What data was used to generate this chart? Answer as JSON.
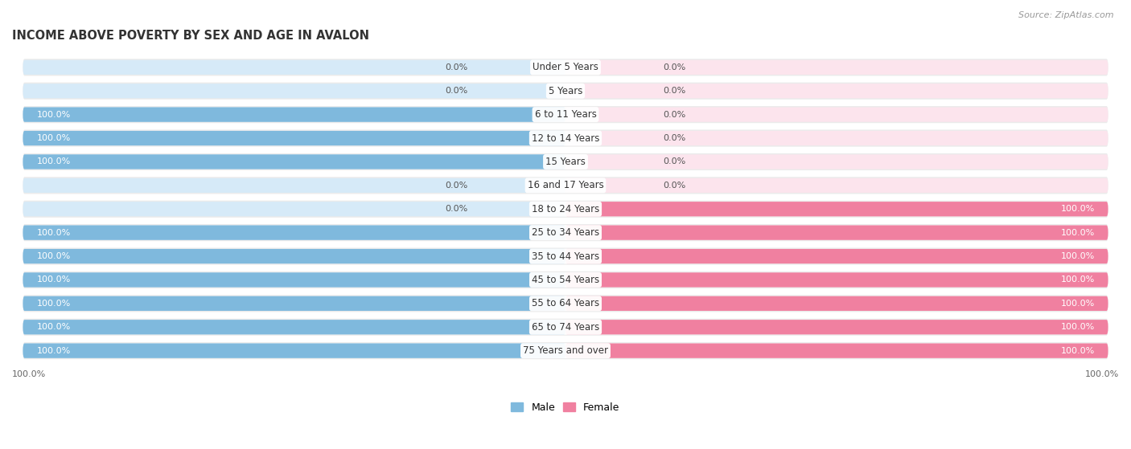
{
  "title": "INCOME ABOVE POVERTY BY SEX AND AGE IN AVALON",
  "source": "Source: ZipAtlas.com",
  "categories": [
    "Under 5 Years",
    "5 Years",
    "6 to 11 Years",
    "12 to 14 Years",
    "15 Years",
    "16 and 17 Years",
    "18 to 24 Years",
    "25 to 34 Years",
    "35 to 44 Years",
    "45 to 54 Years",
    "55 to 64 Years",
    "65 to 74 Years",
    "75 Years and over"
  ],
  "male": [
    0.0,
    0.0,
    100.0,
    100.0,
    100.0,
    0.0,
    0.0,
    100.0,
    100.0,
    100.0,
    100.0,
    100.0,
    100.0
  ],
  "female": [
    0.0,
    0.0,
    0.0,
    0.0,
    0.0,
    0.0,
    100.0,
    100.0,
    100.0,
    100.0,
    100.0,
    100.0,
    100.0
  ],
  "male_color": "#7fb9dd",
  "female_color": "#f080a0",
  "bar_background_male": "#d6eaf8",
  "bar_background_female": "#fce4ed",
  "row_bg": "#ebebeb",
  "title_fontsize": 10.5,
  "label_fontsize": 8.5,
  "value_fontsize": 8.0,
  "legend_male": "Male",
  "legend_female": "Female"
}
